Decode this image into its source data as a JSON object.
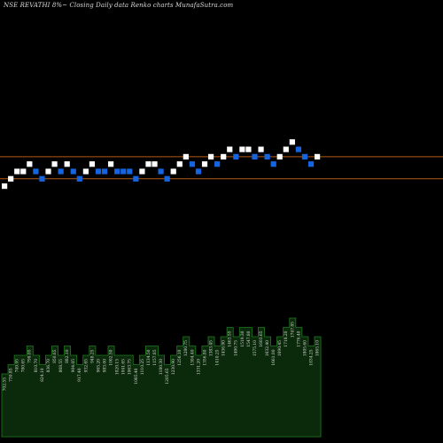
{
  "title": "NSE REVATHI 8%~  Closing Daily data  Renko  charts MunafaSutra.com",
  "colors": {
    "background": "#000000",
    "up_brick": "#ffffff",
    "down_brick": "#1565e0",
    "reference_line": "#b35a14",
    "volume_fill": "#0b2a0b",
    "volume_outline": "#1f7a1f",
    "label_text": "#d8d8d8"
  },
  "chart_data": [
    {
      "type": "renko",
      "reference_levels": [
        1,
        4
      ],
      "bricks": [
        {
          "level": 0,
          "dir": "up"
        },
        {
          "level": 1,
          "dir": "up"
        },
        {
          "level": 2,
          "dir": "up"
        },
        {
          "level": 2,
          "dir": "up"
        },
        {
          "level": 3,
          "dir": "up"
        },
        {
          "level": 2,
          "dir": "down"
        },
        {
          "level": 1,
          "dir": "down"
        },
        {
          "level": 2,
          "dir": "up"
        },
        {
          "level": 3,
          "dir": "up"
        },
        {
          "level": 2,
          "dir": "down"
        },
        {
          "level": 3,
          "dir": "up"
        },
        {
          "level": 2,
          "dir": "down"
        },
        {
          "level": 1,
          "dir": "down"
        },
        {
          "level": 2,
          "dir": "up"
        },
        {
          "level": 3,
          "dir": "up"
        },
        {
          "level": 2,
          "dir": "down"
        },
        {
          "level": 2,
          "dir": "down"
        },
        {
          "level": 3,
          "dir": "up"
        },
        {
          "level": 2,
          "dir": "down"
        },
        {
          "level": 2,
          "dir": "down"
        },
        {
          "level": 2,
          "dir": "down"
        },
        {
          "level": 1,
          "dir": "down"
        },
        {
          "level": 2,
          "dir": "up"
        },
        {
          "level": 3,
          "dir": "up"
        },
        {
          "level": 3,
          "dir": "up"
        },
        {
          "level": 2,
          "dir": "down"
        },
        {
          "level": 1,
          "dir": "down"
        },
        {
          "level": 2,
          "dir": "up"
        },
        {
          "level": 3,
          "dir": "up"
        },
        {
          "level": 4,
          "dir": "up"
        },
        {
          "level": 3,
          "dir": "down"
        },
        {
          "level": 2,
          "dir": "down"
        },
        {
          "level": 3,
          "dir": "up"
        },
        {
          "level": 4,
          "dir": "up"
        },
        {
          "level": 3,
          "dir": "down"
        },
        {
          "level": 4,
          "dir": "up"
        },
        {
          "level": 5,
          "dir": "up"
        },
        {
          "level": 4,
          "dir": "down"
        },
        {
          "level": 5,
          "dir": "up"
        },
        {
          "level": 5,
          "dir": "up"
        },
        {
          "level": 4,
          "dir": "down"
        },
        {
          "level": 5,
          "dir": "up"
        },
        {
          "level": 4,
          "dir": "down"
        },
        {
          "level": 3,
          "dir": "down"
        },
        {
          "level": 4,
          "dir": "up"
        },
        {
          "level": 5,
          "dir": "up"
        },
        {
          "level": 6,
          "dir": "up"
        },
        {
          "level": 5,
          "dir": "down"
        },
        {
          "level": 4,
          "dir": "down"
        },
        {
          "level": 3,
          "dir": "down"
        },
        {
          "level": 4,
          "dir": "up"
        }
      ],
      "volume_labels": [
        "702.55",
        "730.85",
        "749.95",
        "780.65",
        "798.05",
        "810.70",
        "824.10",
        "836.70",
        "850.65",
        "868.55",
        "882.10",
        "904.05",
        "917.40",
        "932.65",
        "948.25",
        "965.20",
        "983.00",
        "1002.50",
        "1020.15",
        "1041.65",
        "1063.75",
        "1085.40",
        "1110.25",
        "1134.50",
        "1157.85",
        "1180.30",
        "1205.65",
        "1230.90",
        "1256.10",
        "1280.75",
        "1304.40",
        "1331.20",
        "1356.80",
        "1383.45",
        "1410.25",
        "1436.90",
        "1463.55",
        "1490.75",
        "1519.30",
        "1547.80",
        "1575.10",
        "1603.65",
        "1632.40",
        "1661.00",
        "1690.45",
        "1718.20",
        "1747.85",
        "1776.40",
        "1805.60",
        "1834.25",
        "1865.10"
      ]
    }
  ]
}
